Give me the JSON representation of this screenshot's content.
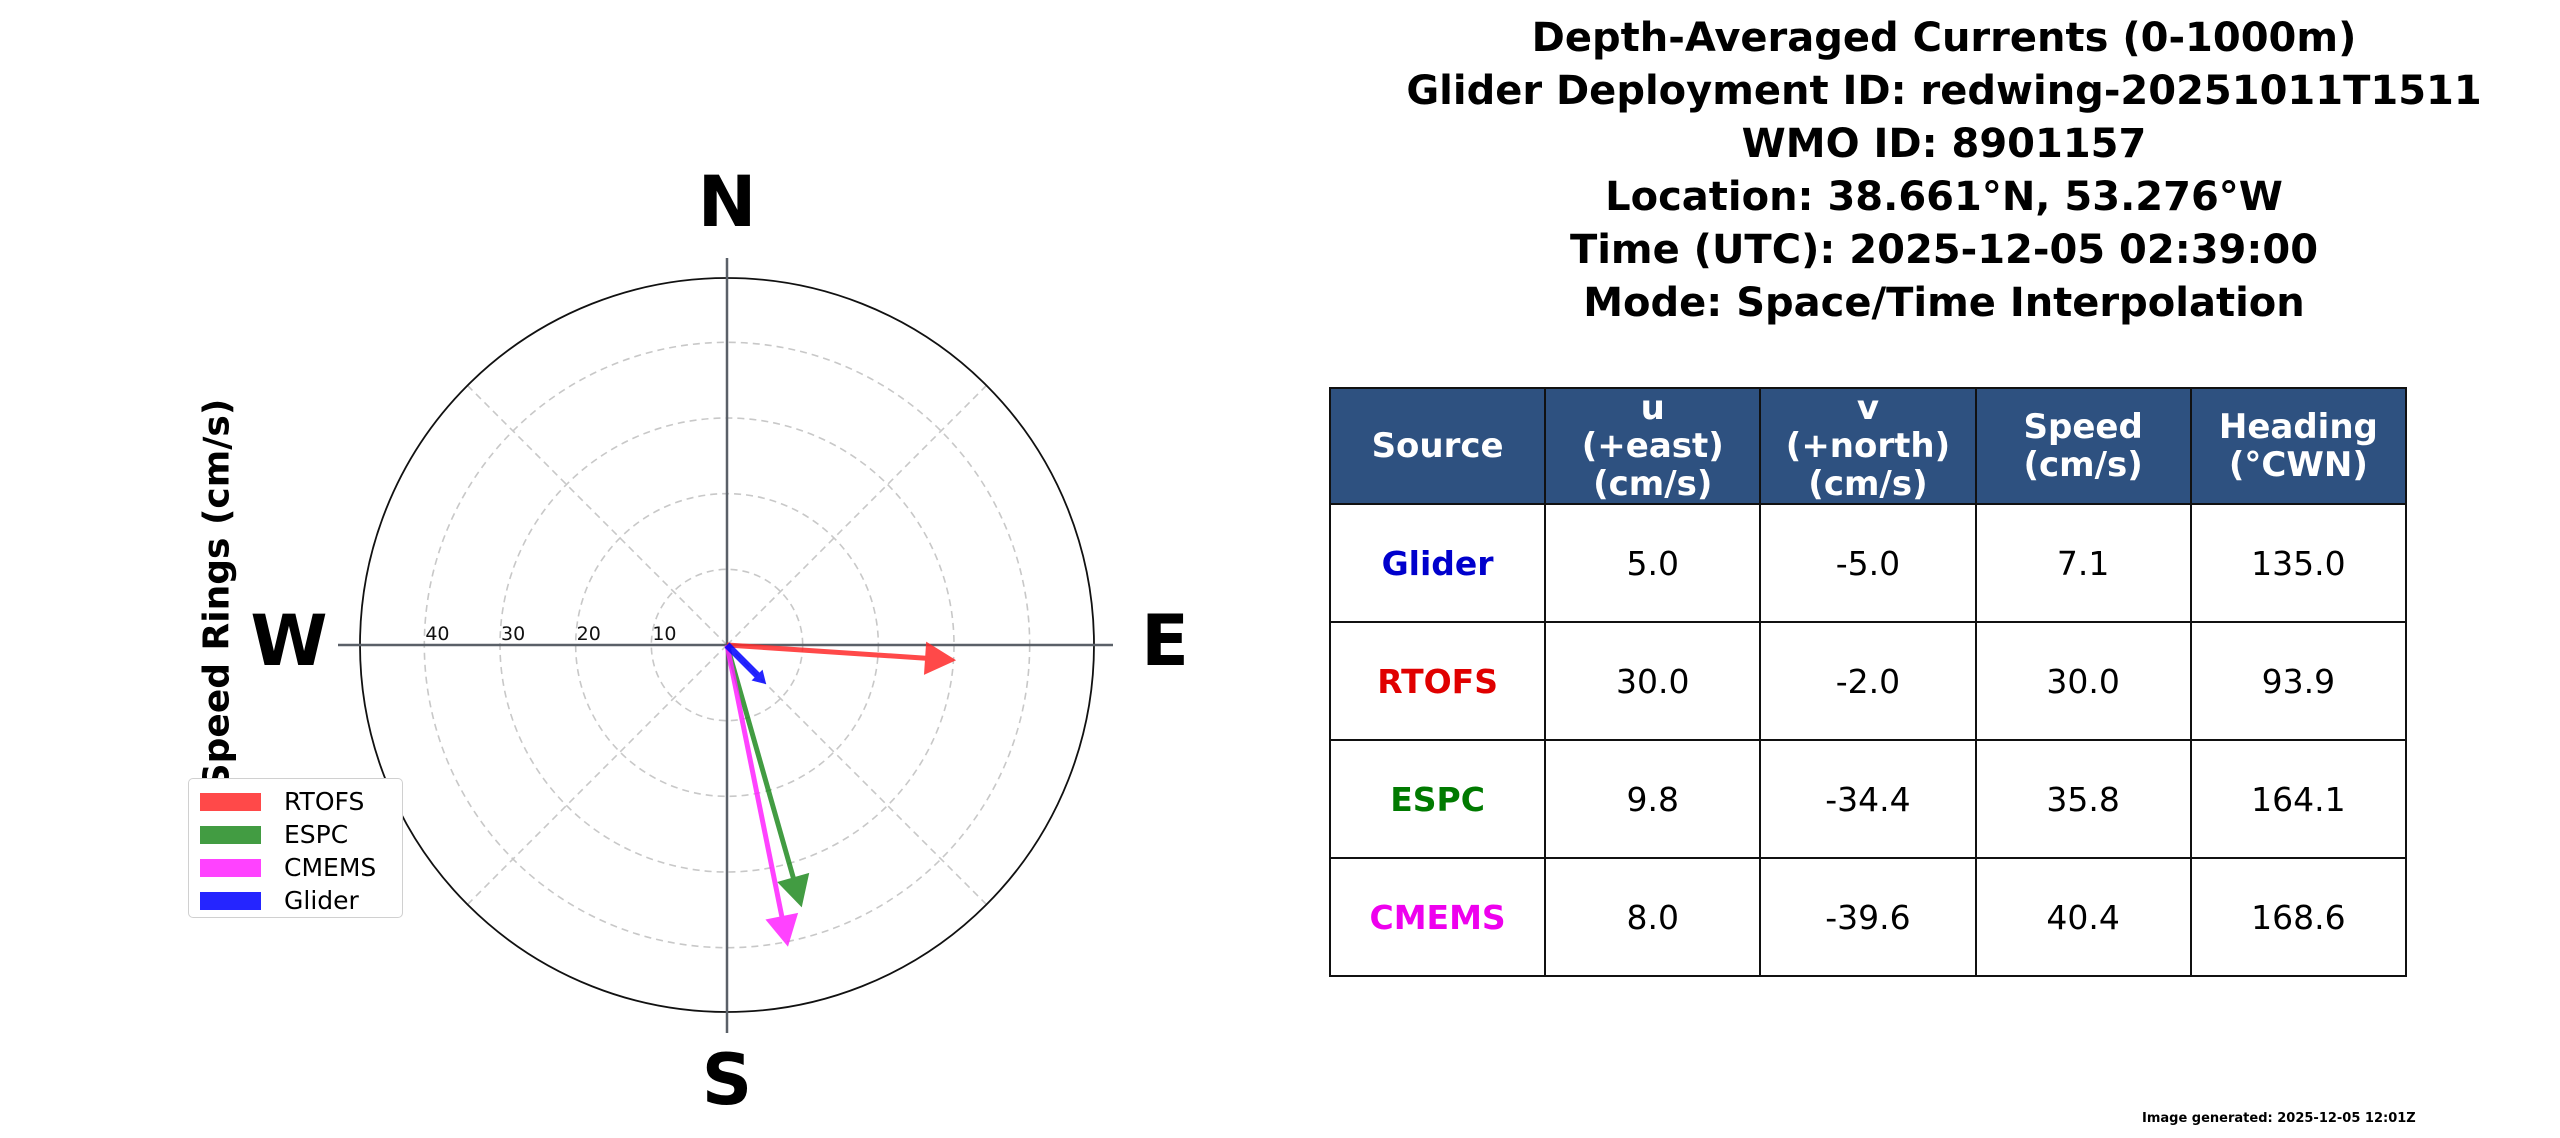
{
  "title": {
    "lines": [
      "Depth-Averaged Currents (0-1000m)",
      "Glider Deployment ID: redwing-20251011T1511",
      "WMO ID: 8901157",
      "Location: 38.661°N, 53.276°W",
      "Time (UTC): 2025-12-05 02:39:00",
      "Mode: Space/Time Interpolation"
    ]
  },
  "table": {
    "headers": [
      "Source",
      "u\n(+east)\n(cm/s)",
      "v\n(+north)\n(cm/s)",
      "Speed\n(cm/s)",
      "Heading\n(°CWN)"
    ],
    "rows": [
      {
        "source": "Glider",
        "color": "#0000cc",
        "u": "5.0",
        "v": "-5.0",
        "speed": "7.1",
        "heading": "135.0"
      },
      {
        "source": "RTOFS",
        "color": "#e00000",
        "u": "30.0",
        "v": "-2.0",
        "speed": "30.0",
        "heading": "93.9"
      },
      {
        "source": "ESPC",
        "color": "#007a00",
        "u": "9.8",
        "v": "-34.4",
        "speed": "35.8",
        "heading": "164.1"
      },
      {
        "source": "CMEMS",
        "color": "#ee00ee",
        "u": "8.0",
        "v": "-39.6",
        "speed": "40.4",
        "heading": "168.6"
      }
    ]
  },
  "footer": "Image generated: 2025-12-05 12:01Z",
  "chart_data": {
    "type": "polar-vector",
    "title": "Depth-Averaged Currents (0-1000m)",
    "ylabel": "Speed Rings (cm/s)",
    "compass_labels": {
      "N": "N",
      "E": "E",
      "S": "S",
      "W": "W"
    },
    "ring_values": [
      10,
      20,
      30,
      40
    ],
    "ring_labels": [
      "10",
      "20",
      "30",
      "40"
    ],
    "rmax": 48.5,
    "grid": true,
    "legend_position": "lower left",
    "series": [
      {
        "name": "RTOFS",
        "u": 30.0,
        "v": -2.0,
        "speed": 30.0,
        "heading": 93.9,
        "color": "#ff2a2a"
      },
      {
        "name": "ESPC",
        "u": 9.8,
        "v": -34.4,
        "speed": 35.8,
        "heading": 164.1,
        "color": "#228b22"
      },
      {
        "name": "CMEMS",
        "u": 8.0,
        "v": -39.6,
        "speed": 40.4,
        "heading": 168.6,
        "color": "#ff22ff"
      },
      {
        "name": "Glider",
        "u": 5.0,
        "v": -5.0,
        "speed": 7.1,
        "heading": 135.0,
        "color": "#0000ff"
      }
    ]
  }
}
